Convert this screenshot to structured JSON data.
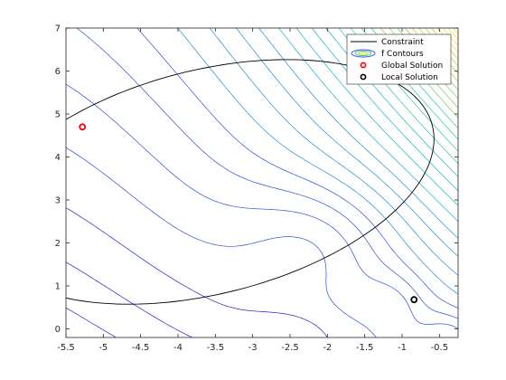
{
  "chart_data": {
    "type": "contour",
    "title": "",
    "xlabel": "",
    "ylabel": "",
    "xlim": [
      -5.5,
      -0.25
    ],
    "ylim": [
      -0.2,
      7
    ],
    "xticks": [
      "-5.5",
      "-5",
      "-4.5",
      "-4",
      "-3.5",
      "-3",
      "-2.5",
      "-2",
      "-1.5",
      "-1",
      "-0.5"
    ],
    "xtick_values": [
      -5.5,
      -5,
      -4.5,
      -4,
      -3.5,
      -3,
      -2.5,
      -2,
      -1.5,
      -1,
      -0.5
    ],
    "yticks": [
      "0",
      "1",
      "2",
      "3",
      "4",
      "5",
      "6",
      "7"
    ],
    "ytick_values": [
      0,
      1,
      2,
      3,
      4,
      5,
      6,
      7
    ],
    "grid": false,
    "legend_position": "top-right",
    "legend": {
      "constraint": "Constraint",
      "contours": "f Contours",
      "global": "Global Solution",
      "local": "Local Solution"
    },
    "constraint": {
      "shape": "ellipse",
      "center": [
        -3.6,
        3.42
      ],
      "semi_axes": [
        2.36,
        3.42
      ],
      "tilt_deg": -50,
      "color": "#000000"
    },
    "contour_colormap": [
      "#1e1ed8",
      "#2f4ce0",
      "#1f8fd8",
      "#12b5c8",
      "#25c8a0",
      "#7ec85a",
      "#c8c82a",
      "#f0e01e"
    ],
    "contour_levels": 32,
    "global_solution": {
      "x": -5.28,
      "y": 4.7,
      "color": "#ff0000"
    },
    "local_solution": {
      "x": -0.84,
      "y": 0.68,
      "color": "#000000"
    }
  }
}
